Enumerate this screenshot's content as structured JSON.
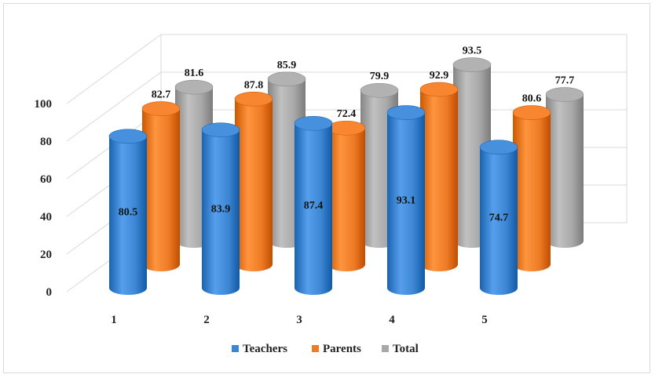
{
  "chart_data": {
    "type": "bar",
    "style": "3d-cylinder",
    "title": "",
    "xlabel": "",
    "ylabel": "",
    "categories": [
      "1",
      "2",
      "3",
      "4",
      "5"
    ],
    "series": [
      {
        "name": "Teachers",
        "values": [
          80.5,
          83.9,
          87.4,
          93.1,
          74.7
        ],
        "color": "#3d86d4"
      },
      {
        "name": "Parents",
        "values": [
          82.7,
          87.8,
          72.4,
          92.9,
          80.6
        ],
        "color": "#ee7b25"
      },
      {
        "name": "Total",
        "values": [
          81.6,
          85.9,
          79.9,
          93.5,
          77.7
        ],
        "color": "#a8a8a8"
      }
    ],
    "ylim": [
      0,
      100
    ],
    "yticks": [
      "0",
      "20",
      "40",
      "60",
      "80",
      "100"
    ],
    "grid": true,
    "legend": "bottom"
  }
}
